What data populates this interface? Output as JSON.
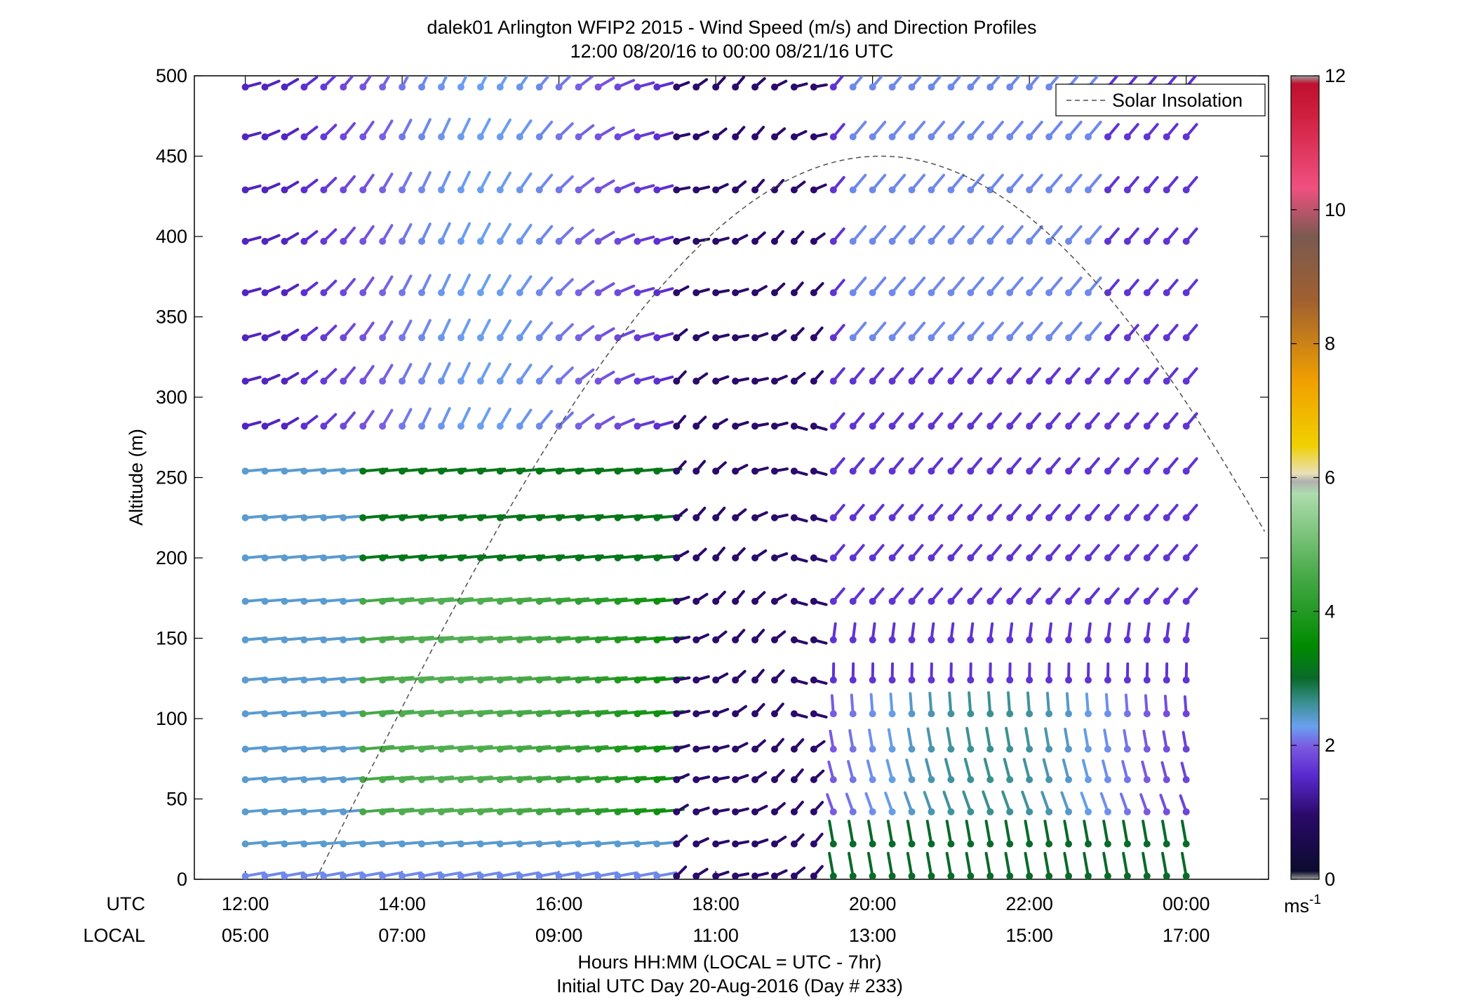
{
  "chart_data": {
    "type": "wind-profile",
    "title": "dalek01 Arlington WFIP2 2015 - Wind Speed (m/s) and Direction Profiles",
    "subtitle": "12:00 08/20/16 to 00:00 08/21/16  UTC",
    "ylabel": "Altitude (m)",
    "ylim": [
      0,
      500
    ],
    "yticks": [
      "0",
      "50",
      "100",
      "150",
      "200",
      "250",
      "300",
      "350",
      "400",
      "450",
      "500"
    ],
    "xlim_hours": [
      11.35,
      25.05
    ],
    "xticks": [
      {
        "hour": 12,
        "utc": "12:00",
        "local": "05:00"
      },
      {
        "hour": 14,
        "utc": "14:00",
        "local": "07:00"
      },
      {
        "hour": 16,
        "utc": "16:00",
        "local": "09:00"
      },
      {
        "hour": 18,
        "utc": "18:00",
        "local": "11:00"
      },
      {
        "hour": 20,
        "utc": "20:00",
        "local": "13:00"
      },
      {
        "hour": 22,
        "utc": "22:00",
        "local": "15:00"
      },
      {
        "hour": 24,
        "utc": "00:00",
        "local": "17:00"
      }
    ],
    "x_row_label_utc": "UTC",
    "x_row_label_local": "LOCAL",
    "xlabel": "Hours HH:MM  (LOCAL = UTC - 7hr)",
    "xlabel2": "Initial UTC Day 20-Aug-2016 (Day # 233)",
    "legend": {
      "label": "Solar Insolation",
      "position": "top-right"
    },
    "colorbar": {
      "min": 0,
      "max": 12,
      "ticks": [
        "0",
        "2",
        "4",
        "6",
        "8",
        "10",
        "12"
      ],
      "unit": "ms",
      "unit_exp": "-1"
    },
    "solar_insolation": {
      "start_hour": 12.9,
      "peak_hour": 20.1,
      "peak_alt": 450,
      "end_hour": 25.05,
      "end_alt": 250
    },
    "altitudes": [
      2,
      22,
      42,
      62,
      81,
      103,
      124,
      149,
      173,
      200,
      225,
      254,
      282,
      310,
      337,
      365,
      397,
      429,
      462,
      493
    ],
    "time_step_hours": 0.25,
    "t_start": 12.0,
    "t_end": 24.0
  }
}
